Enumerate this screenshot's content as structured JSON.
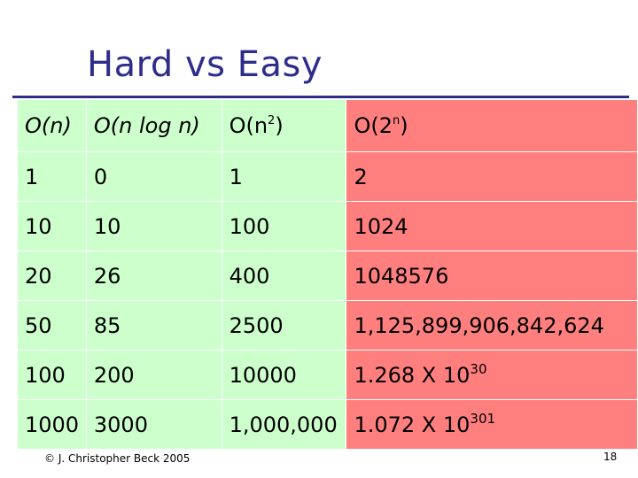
{
  "slide": {
    "title": "Hard vs Easy",
    "copyright": "© J. Christopher Beck 2005",
    "page_number": "18"
  },
  "table": {
    "headers": [
      {
        "base": "O(n)",
        "sup": "",
        "tail": ""
      },
      {
        "base": "O(n log n)",
        "sup": "",
        "tail": ""
      },
      {
        "base": "O(n",
        "sup": "2",
        "tail": ")"
      },
      {
        "base": "O(2",
        "sup": "n",
        "tail": ")"
      }
    ],
    "rows": [
      [
        "1",
        "0",
        "1",
        "2"
      ],
      [
        "10",
        "10",
        "100",
        "1024"
      ],
      [
        "20",
        "26",
        "400",
        "1048576"
      ],
      [
        "50",
        "85",
        "2500",
        "1,125,899,906,842,624"
      ],
      [
        "100",
        "200",
        "10000",
        "1.268 X 10"
      ],
      [
        "1000",
        "3000",
        "1,000,000",
        "1.072 X 10"
      ]
    ],
    "exponents": {
      "row5": "30",
      "row6": "301"
    }
  },
  "colors": {
    "title": "#2e2e8a",
    "easy_cells": "#ccffcc",
    "hard_cells": "#ff7f7f"
  }
}
